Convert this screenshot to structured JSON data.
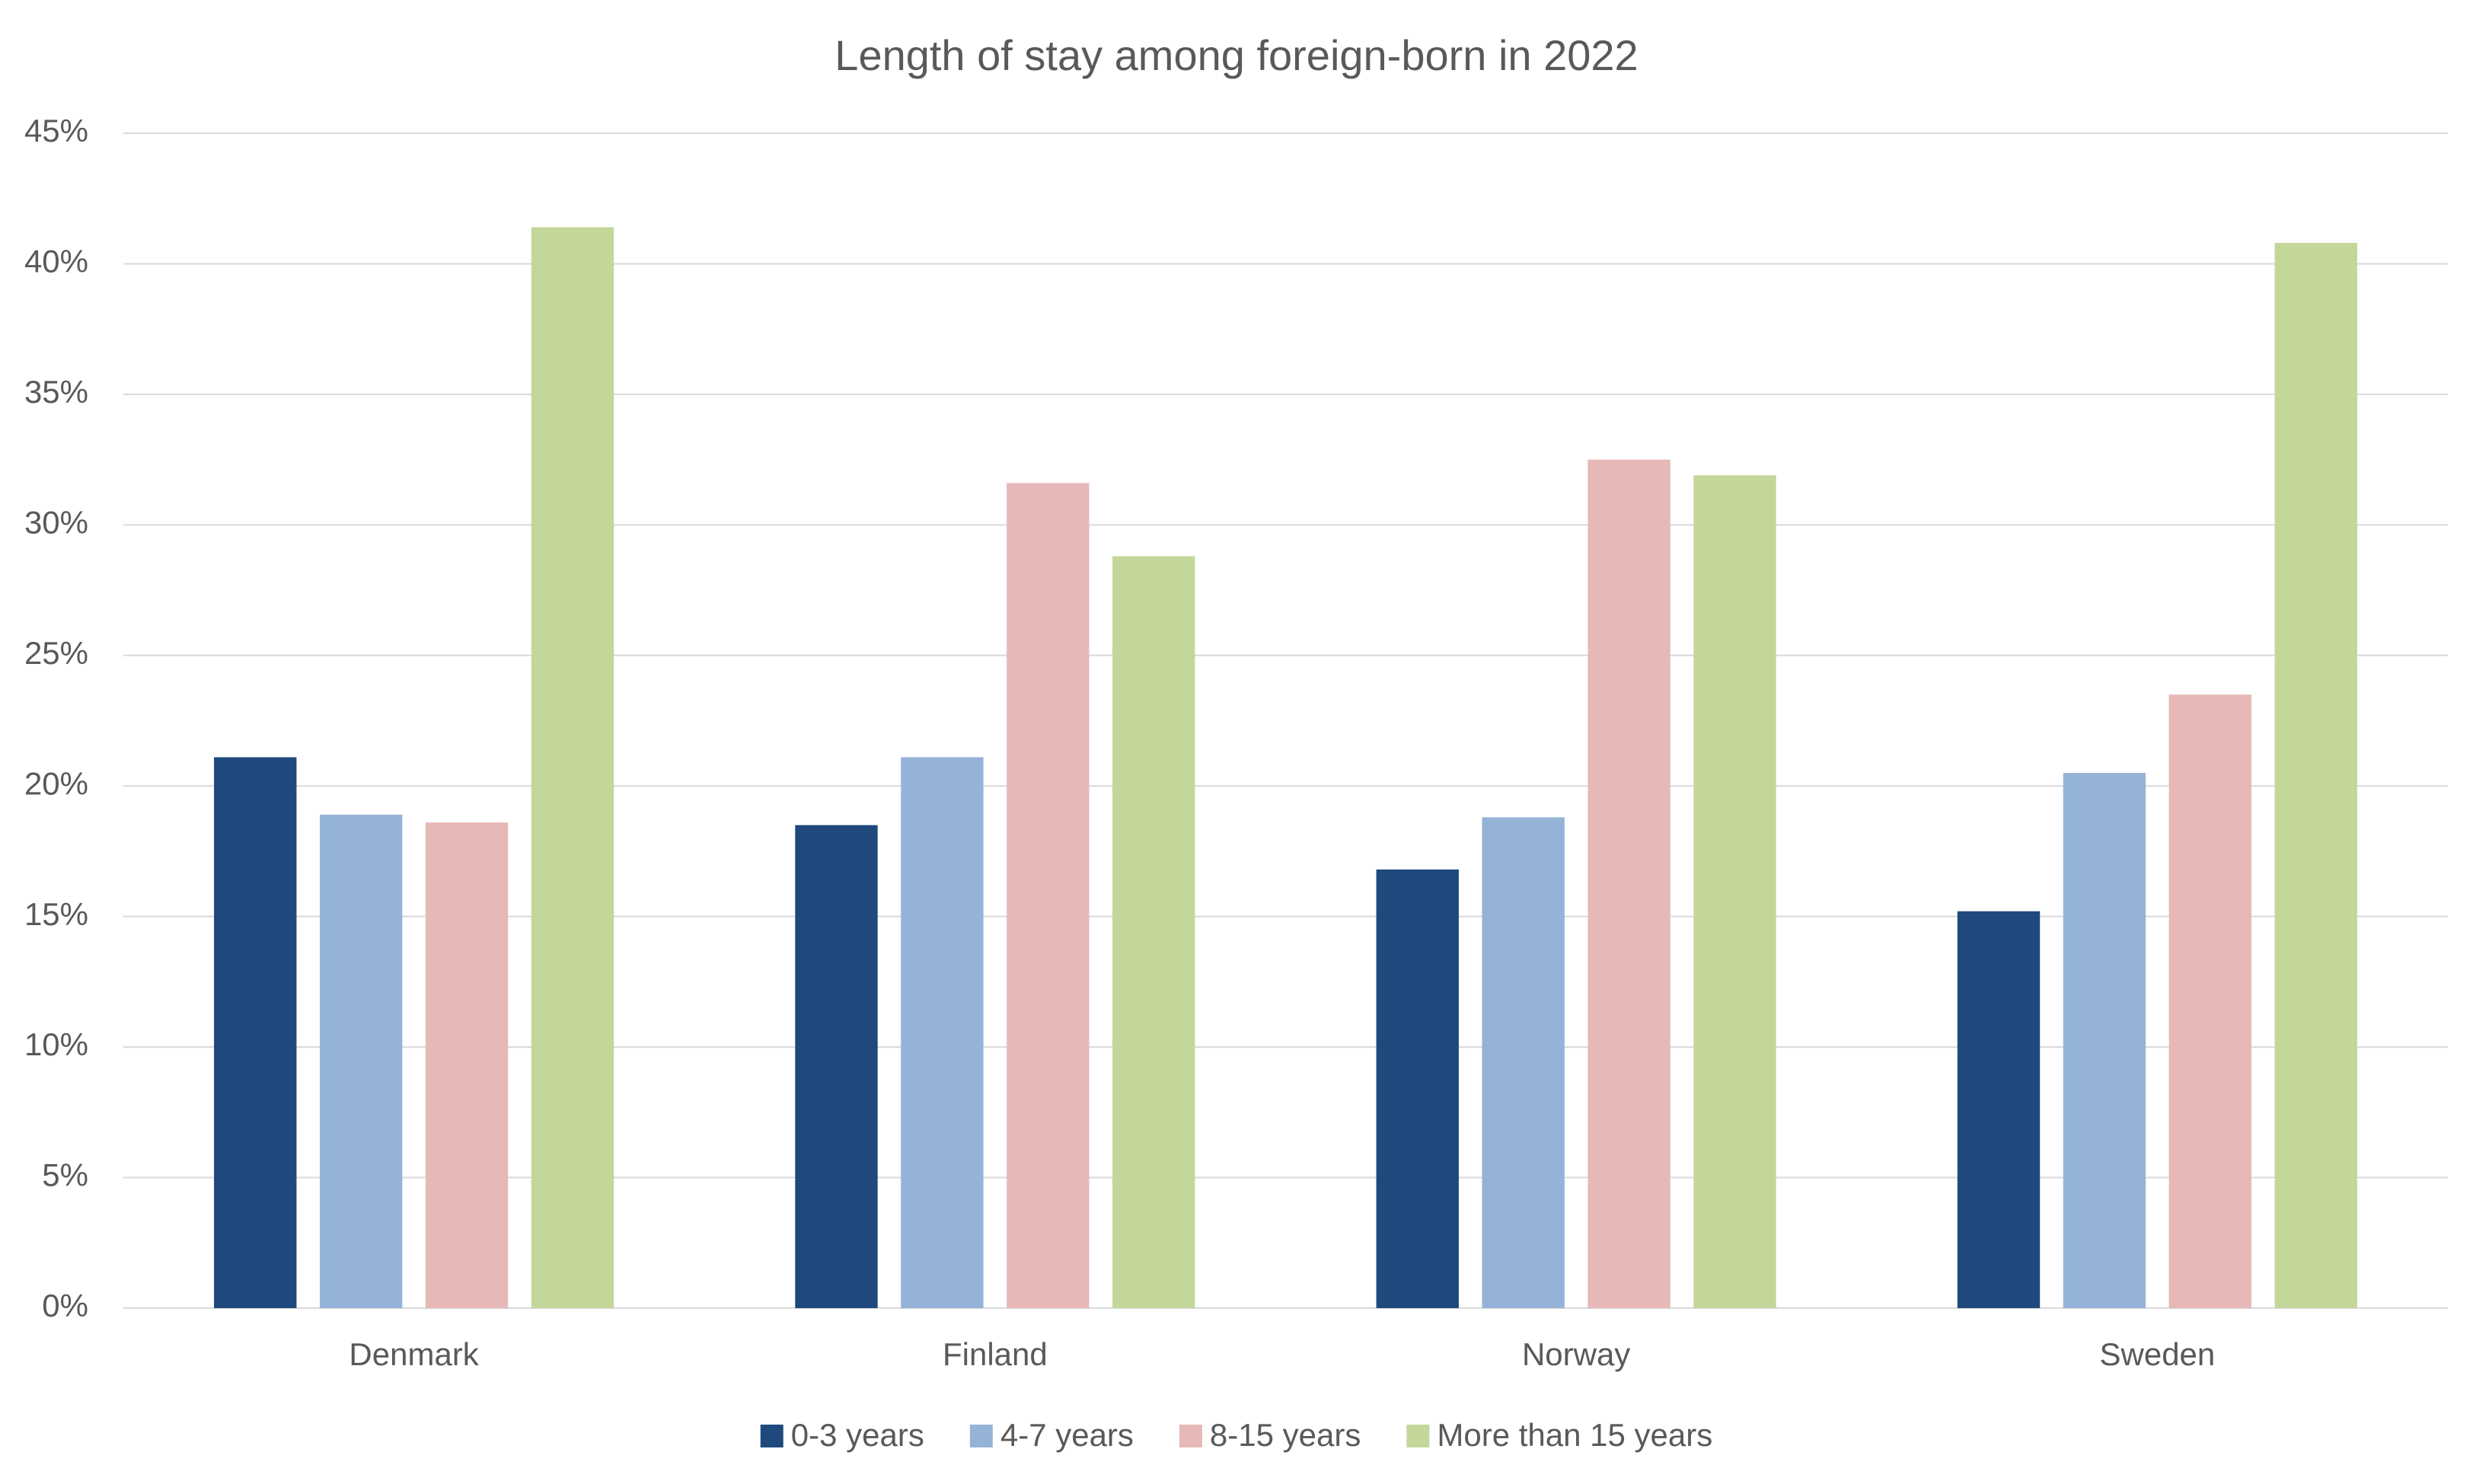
{
  "chart_data": {
    "type": "bar",
    "title": "Length of stay among foreign-born in 2022",
    "categories": [
      "Denmark",
      "Finland",
      "Norway",
      "Sweden"
    ],
    "series": [
      {
        "name": "0-3 years",
        "color": "#1f497d",
        "values": [
          21.1,
          18.5,
          16.8,
          15.2
        ]
      },
      {
        "name": "4-7 years",
        "color": "#95b3d7",
        "values": [
          18.9,
          21.1,
          18.8,
          20.5
        ]
      },
      {
        "name": "8-15 years",
        "color": "#e6b8b7",
        "values": [
          18.6,
          31.6,
          32.5,
          23.5
        ]
      },
      {
        "name": "More than 15 years",
        "color": "#c4d79b",
        "values": [
          41.4,
          28.8,
          31.9,
          40.8
        ]
      }
    ],
    "ylim": [
      0,
      45
    ],
    "yticks": [
      {
        "value": 0,
        "label": "0%"
      },
      {
        "value": 5,
        "label": "5%"
      },
      {
        "value": 10,
        "label": "10%"
      },
      {
        "value": 15,
        "label": "15%"
      },
      {
        "value": 20,
        "label": "20%"
      },
      {
        "value": 25,
        "label": "25%"
      },
      {
        "value": 30,
        "label": "30%"
      },
      {
        "value": 35,
        "label": "35%"
      },
      {
        "value": 40,
        "label": "40%"
      },
      {
        "value": 45,
        "label": "45%"
      }
    ],
    "grid": true,
    "legend": "bottom"
  }
}
